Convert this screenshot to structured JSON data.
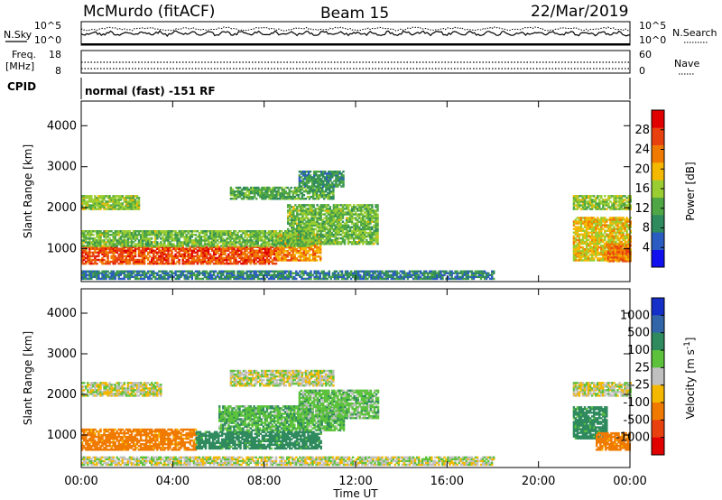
{
  "header": {
    "station": "McMurdo (fitACF)",
    "beam": "Beam 15",
    "date": "22/Mar/2019"
  },
  "top_panels": {
    "nsky_label": "N.Sky",
    "nsky_ticks": [
      "10^5",
      "10^0"
    ],
    "nsearch_label": "N.Search",
    "nsearch_ticks": [
      "10^5",
      "10^0"
    ],
    "freq_label_line1": "Freq.",
    "freq_label_line2": "[MHz]",
    "freq_ticks": [
      "18",
      "8"
    ],
    "nave_label": "Nave",
    "nave_ticks": [
      "60",
      "0"
    ],
    "cpid_label": "CPID",
    "cpid_text": "normal (fast) -151 RF"
  },
  "chart_data": [
    {
      "type": "heatmap",
      "name": "power",
      "ylabel": "Slant Range [km]",
      "ylim": [
        200,
        4600
      ],
      "yticks": [
        1000,
        2000,
        3000,
        4000
      ],
      "xlim": [
        0,
        24
      ],
      "colorbar": {
        "label": "Power [dB]",
        "range": [
          0,
          32
        ],
        "ticks": [
          4,
          8,
          12,
          16,
          20,
          24,
          28
        ],
        "colors": [
          "#1010ee",
          "#2b5cc2",
          "#2f8a5e",
          "#4ea644",
          "#9acd32",
          "#f5b800",
          "#f07a00",
          "#e94010",
          "#e00000"
        ]
      },
      "regions": [
        {
          "t": [
            0.0,
            8.5
          ],
          "r": [
            620,
            1050
          ],
          "dB": 26
        },
        {
          "t": [
            8.5,
            10.5
          ],
          "r": [
            700,
            1350
          ],
          "dB": 22
        },
        {
          "t": [
            0.0,
            10.0
          ],
          "r": [
            1050,
            1450
          ],
          "dB": 14
        },
        {
          "t": [
            9.0,
            13.0
          ],
          "r": [
            1100,
            2050
          ],
          "dB": 14
        },
        {
          "t": [
            0.0,
            2.5
          ],
          "r": [
            1950,
            2300
          ],
          "dB": 15
        },
        {
          "t": [
            6.5,
            11.0
          ],
          "r": [
            2200,
            2500
          ],
          "dB": 12
        },
        {
          "t": [
            9.5,
            11.5
          ],
          "r": [
            2500,
            2900
          ],
          "dB": 10
        },
        {
          "t": [
            21.5,
            24.0
          ],
          "r": [
            1950,
            2300
          ],
          "dB": 15
        },
        {
          "t": [
            21.5,
            24.0
          ],
          "r": [
            700,
            1750
          ],
          "dB": 19
        },
        {
          "t": [
            23.0,
            24.0
          ],
          "r": [
            680,
            1100
          ],
          "dB": 24
        },
        {
          "t": [
            0.0,
            18.0
          ],
          "r": [
            250,
            450
          ],
          "dB": 8
        }
      ]
    },
    {
      "type": "heatmap",
      "name": "velocity",
      "ylabel": "Slant Range [km]",
      "ylim": [
        200,
        4600
      ],
      "yticks": [
        1000,
        2000,
        3000,
        4000
      ],
      "xlim": [
        0,
        24
      ],
      "xlabel": "Time UT",
      "xticks": [
        "00:00",
        "04:00",
        "08:00",
        "12:00",
        "16:00",
        "20:00",
        "00:00"
      ],
      "colorbar": {
        "label": "Velocity [m s^-1]",
        "tick_labels": [
          "1000",
          "500",
          "100",
          "25",
          "-25",
          "-100",
          "-500",
          "-1000"
        ],
        "colors": [
          "#1530c8",
          "#3266a8",
          "#2f8a5e",
          "#5cc23c",
          "#c0c0c0",
          "#f5b800",
          "#f07a00",
          "#e94010",
          "#e00000"
        ]
      },
      "regions": [
        {
          "t": [
            0.0,
            5.0
          ],
          "r": [
            620,
            1150
          ],
          "v": -150
        },
        {
          "t": [
            5.0,
            10.5
          ],
          "r": [
            650,
            1100
          ],
          "v": 150
        },
        {
          "t": [
            6.0,
            11.5
          ],
          "r": [
            1100,
            1700
          ],
          "v": 80
        },
        {
          "t": [
            9.5,
            13.0
          ],
          "r": [
            1400,
            2100
          ],
          "v": 60
        },
        {
          "t": [
            0.0,
            3.5
          ],
          "r": [
            1950,
            2300
          ],
          "v": 0
        },
        {
          "t": [
            6.5,
            11.0
          ],
          "r": [
            2200,
            2600
          ],
          "v": 0
        },
        {
          "t": [
            21.5,
            24.0
          ],
          "r": [
            1950,
            2300
          ],
          "v": 0
        },
        {
          "t": [
            21.5,
            23.0
          ],
          "r": [
            900,
            1700
          ],
          "v": 150
        },
        {
          "t": [
            22.5,
            24.0
          ],
          "r": [
            620,
            1050
          ],
          "v": -150
        },
        {
          "t": [
            0.0,
            18.0
          ],
          "r": [
            250,
            450
          ],
          "v": 0
        }
      ]
    }
  ]
}
